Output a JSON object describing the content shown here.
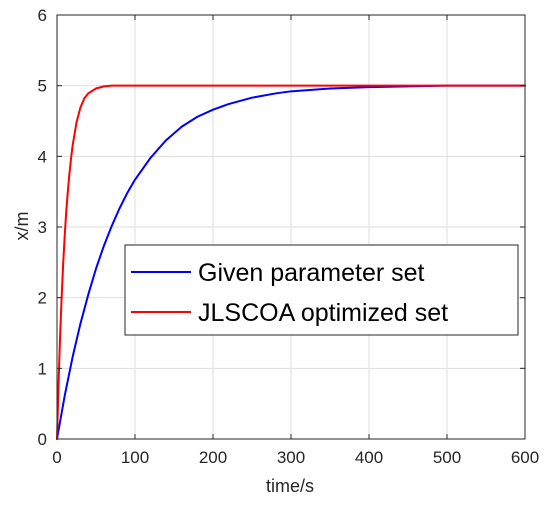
{
  "chart_data": {
    "type": "line",
    "title": "",
    "xlabel": "time/s",
    "ylabel": "x/m",
    "xlim": [
      0,
      600
    ],
    "ylim": [
      0,
      6
    ],
    "xticks": [
      0,
      100,
      200,
      300,
      400,
      500,
      600
    ],
    "yticks": [
      0,
      1,
      2,
      3,
      4,
      5,
      6
    ],
    "xtick_labels": [
      "0",
      "100",
      "200",
      "300",
      "400",
      "500",
      "600"
    ],
    "ytick_labels": [
      "0",
      "1",
      "2",
      "3",
      "4",
      "5",
      "6"
    ],
    "grid": true,
    "legend_position": "center-right",
    "series": [
      {
        "name": "Given parameter set",
        "color": "#0000ff",
        "x": [
          0,
          10,
          20,
          30,
          40,
          50,
          60,
          70,
          80,
          90,
          100,
          120,
          140,
          160,
          180,
          200,
          220,
          250,
          280,
          300,
          350,
          400,
          450,
          500,
          550,
          600
        ],
        "y": [
          0,
          0.62,
          1.16,
          1.63,
          2.04,
          2.41,
          2.73,
          3.01,
          3.26,
          3.48,
          3.67,
          3.98,
          4.23,
          4.42,
          4.56,
          4.66,
          4.74,
          4.83,
          4.89,
          4.92,
          4.96,
          4.98,
          4.99,
          5.0,
          5.0,
          5.0
        ]
      },
      {
        "name": "JLSCOA optimized set",
        "color": "#ff0000",
        "x": [
          0,
          2,
          4,
          6,
          8,
          10,
          12,
          14,
          16,
          18,
          20,
          25,
          30,
          35,
          40,
          50,
          60,
          70,
          80,
          100,
          200,
          300,
          400,
          500,
          600
        ],
        "y": [
          0,
          0.79,
          1.46,
          2.02,
          2.5,
          2.9,
          3.24,
          3.52,
          3.76,
          3.97,
          4.15,
          4.48,
          4.69,
          4.82,
          4.89,
          4.96,
          4.99,
          5.0,
          5.0,
          5.0,
          5.0,
          5.0,
          5.0,
          5.0,
          5.0
        ]
      }
    ]
  }
}
